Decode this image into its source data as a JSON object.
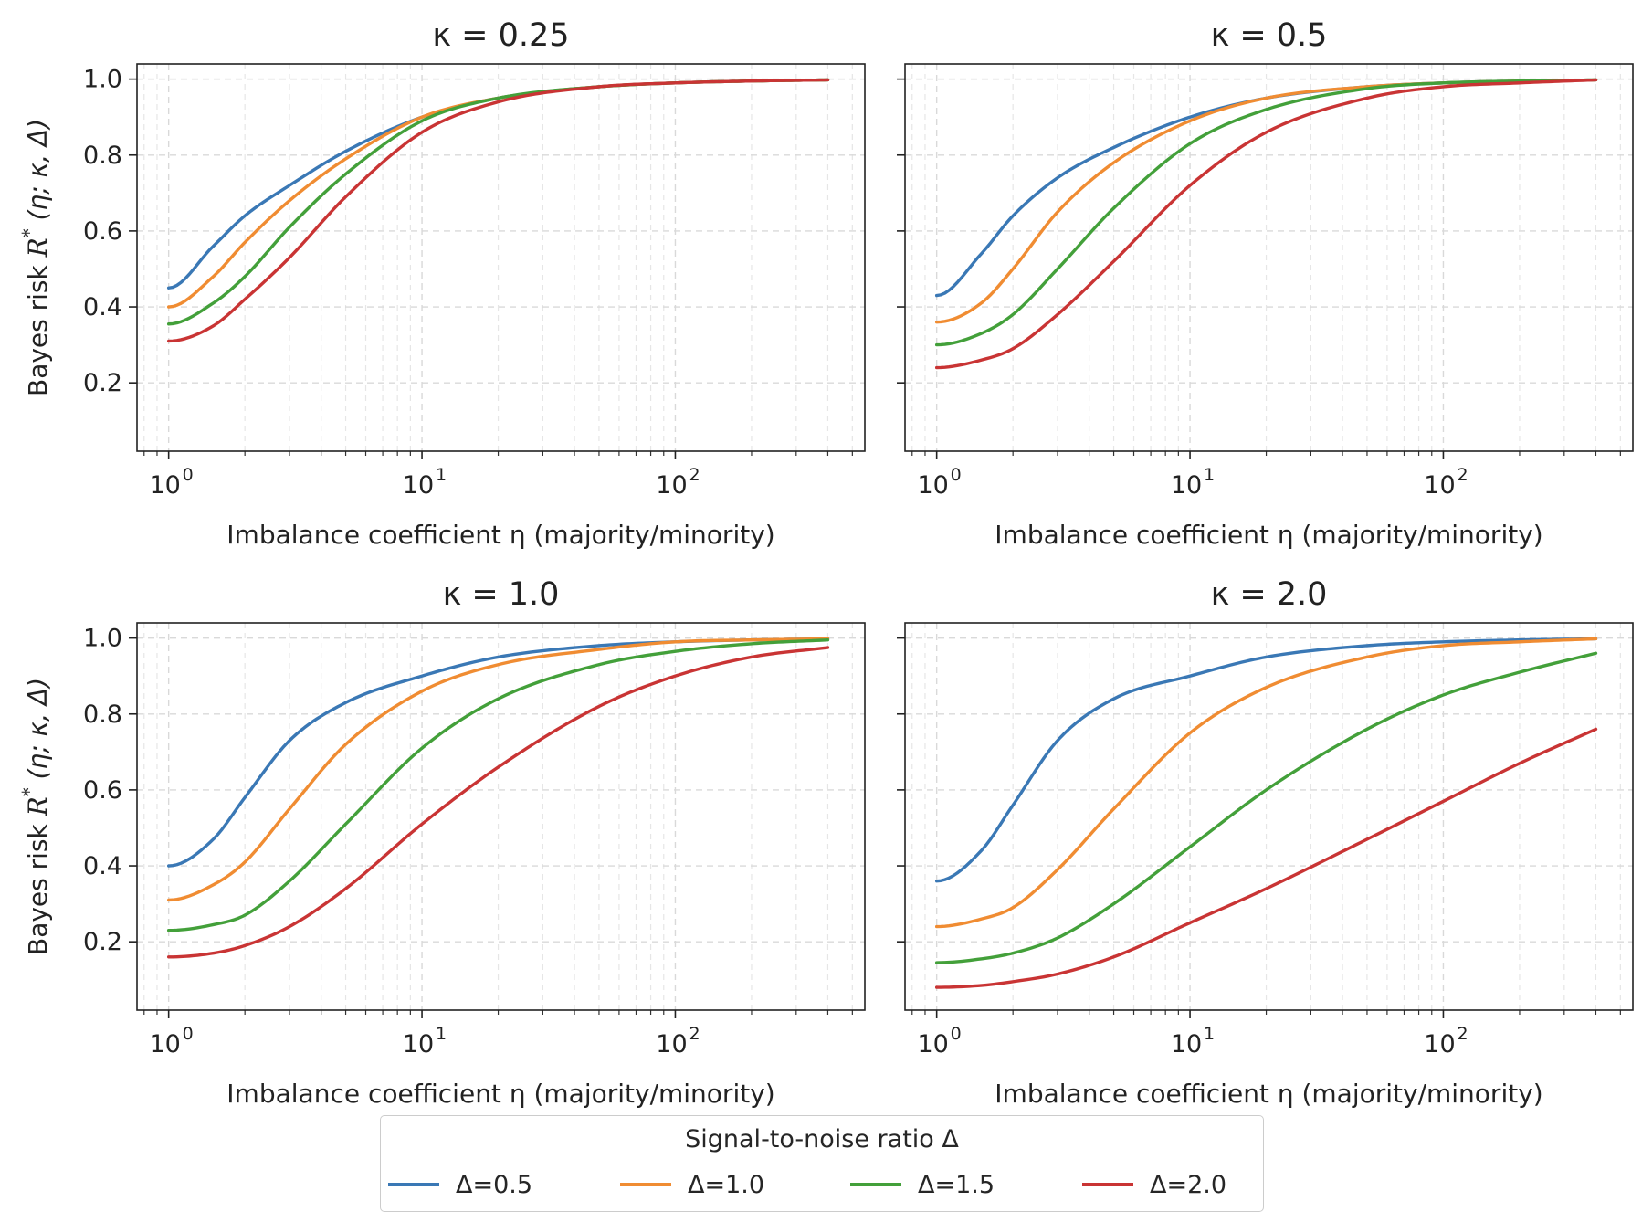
{
  "chart_data": [
    {
      "type": "line",
      "title": "κ = 0.25",
      "xlabel": "Imbalance coefficient η (majority/minority)",
      "ylabel": "Bayes risk",
      "x_scale": "log",
      "xlim": [
        0.75,
        560
      ],
      "ylim": [
        0.02,
        1.04
      ],
      "x_ticks": [
        1,
        10,
        100
      ],
      "x_tick_labels": [
        "10",
        "10",
        "10"
      ],
      "x_tick_exponents": [
        "0",
        "1",
        "2"
      ],
      "y_ticks": [
        0.2,
        0.4,
        0.6,
        0.8,
        1.0
      ],
      "y_tick_labels": [
        "0.2",
        "0.4",
        "0.6",
        "0.8",
        "1.0"
      ],
      "grid": true,
      "x": [
        1,
        1.5,
        2,
        3,
        5,
        10,
        20,
        50,
        100,
        200,
        400
      ],
      "series": [
        {
          "name": "Δ=0.5",
          "values": [
            0.45,
            0.56,
            0.64,
            0.72,
            0.81,
            0.9,
            0.95,
            0.98,
            0.99,
            0.995,
            0.998
          ]
        },
        {
          "name": "Δ=1.0",
          "values": [
            0.4,
            0.48,
            0.57,
            0.68,
            0.79,
            0.9,
            0.95,
            0.98,
            0.99,
            0.995,
            0.998
          ]
        },
        {
          "name": "Δ=1.5",
          "values": [
            0.355,
            0.41,
            0.48,
            0.61,
            0.75,
            0.89,
            0.95,
            0.98,
            0.99,
            0.995,
            0.998
          ]
        },
        {
          "name": "Δ=2.0",
          "values": [
            0.31,
            0.35,
            0.42,
            0.53,
            0.69,
            0.86,
            0.94,
            0.98,
            0.99,
            0.995,
            0.998
          ]
        }
      ]
    },
    {
      "type": "line",
      "title": "κ = 0.5",
      "xlabel": "Imbalance coefficient η (majority/minority)",
      "ylabel": "",
      "x_scale": "log",
      "xlim": [
        0.75,
        560
      ],
      "ylim": [
        0.02,
        1.04
      ],
      "x_ticks": [
        1,
        10,
        100
      ],
      "x_tick_labels": [
        "10",
        "10",
        "10"
      ],
      "x_tick_exponents": [
        "0",
        "1",
        "2"
      ],
      "y_ticks": [
        0.2,
        0.4,
        0.6,
        0.8,
        1.0
      ],
      "y_tick_labels": [
        "",
        "",
        "",
        "",
        ""
      ],
      "grid": true,
      "x": [
        1,
        1.5,
        2,
        3,
        5,
        10,
        20,
        50,
        100,
        200,
        400
      ],
      "series": [
        {
          "name": "Δ=0.5",
          "values": [
            0.43,
            0.54,
            0.64,
            0.74,
            0.82,
            0.9,
            0.95,
            0.98,
            0.99,
            0.995,
            0.998
          ]
        },
        {
          "name": "Δ=1.0",
          "values": [
            0.36,
            0.41,
            0.5,
            0.65,
            0.78,
            0.89,
            0.95,
            0.98,
            0.99,
            0.995,
            0.998
          ]
        },
        {
          "name": "Δ=1.5",
          "values": [
            0.3,
            0.33,
            0.38,
            0.5,
            0.66,
            0.83,
            0.92,
            0.975,
            0.99,
            0.995,
            0.998
          ]
        },
        {
          "name": "Δ=2.0",
          "values": [
            0.24,
            0.26,
            0.29,
            0.38,
            0.52,
            0.72,
            0.86,
            0.95,
            0.98,
            0.99,
            0.998
          ]
        }
      ]
    },
    {
      "type": "line",
      "title": "κ = 1.0",
      "xlabel": "Imbalance coefficient η (majority/minority)",
      "ylabel": "Bayes risk",
      "x_scale": "log",
      "xlim": [
        0.75,
        560
      ],
      "ylim": [
        0.02,
        1.04
      ],
      "x_ticks": [
        1,
        10,
        100
      ],
      "x_tick_labels": [
        "10",
        "10",
        "10"
      ],
      "x_tick_exponents": [
        "0",
        "1",
        "2"
      ],
      "y_ticks": [
        0.2,
        0.4,
        0.6,
        0.8,
        1.0
      ],
      "y_tick_labels": [
        "0.2",
        "0.4",
        "0.6",
        "0.8",
        "1.0"
      ],
      "grid": true,
      "x": [
        1,
        1.5,
        2,
        3,
        5,
        10,
        20,
        50,
        100,
        200,
        400
      ],
      "series": [
        {
          "name": "Δ=0.5",
          "values": [
            0.4,
            0.47,
            0.58,
            0.73,
            0.83,
            0.9,
            0.95,
            0.98,
            0.99,
            0.995,
            0.998
          ]
        },
        {
          "name": "Δ=1.0",
          "values": [
            0.31,
            0.35,
            0.41,
            0.55,
            0.72,
            0.86,
            0.93,
            0.97,
            0.99,
            0.995,
            0.998
          ]
        },
        {
          "name": "Δ=1.5",
          "values": [
            0.23,
            0.245,
            0.27,
            0.36,
            0.51,
            0.71,
            0.84,
            0.93,
            0.965,
            0.985,
            0.995
          ]
        },
        {
          "name": "Δ=2.0",
          "values": [
            0.16,
            0.17,
            0.19,
            0.24,
            0.34,
            0.51,
            0.66,
            0.82,
            0.9,
            0.95,
            0.975
          ]
        }
      ]
    },
    {
      "type": "line",
      "title": "κ = 2.0",
      "xlabel": "Imbalance coefficient η (majority/minority)",
      "ylabel": "",
      "x_scale": "log",
      "xlim": [
        0.75,
        560
      ],
      "ylim": [
        0.02,
        1.04
      ],
      "x_ticks": [
        1,
        10,
        100
      ],
      "x_tick_labels": [
        "10",
        "10",
        "10"
      ],
      "x_tick_exponents": [
        "0",
        "1",
        "2"
      ],
      "y_ticks": [
        0.2,
        0.4,
        0.6,
        0.8,
        1.0
      ],
      "y_tick_labels": [
        "",
        "",
        "",
        "",
        ""
      ],
      "grid": true,
      "x": [
        1,
        1.5,
        2,
        3,
        5,
        10,
        20,
        50,
        100,
        200,
        400
      ],
      "series": [
        {
          "name": "Δ=0.5",
          "values": [
            0.36,
            0.44,
            0.56,
            0.73,
            0.84,
            0.9,
            0.95,
            0.98,
            0.99,
            0.995,
            0.998
          ]
        },
        {
          "name": "Δ=1.0",
          "values": [
            0.24,
            0.26,
            0.29,
            0.39,
            0.55,
            0.75,
            0.87,
            0.95,
            0.98,
            0.99,
            0.998
          ]
        },
        {
          "name": "Δ=1.5",
          "values": [
            0.145,
            0.155,
            0.17,
            0.21,
            0.3,
            0.45,
            0.6,
            0.76,
            0.85,
            0.91,
            0.96
          ]
        },
        {
          "name": "Δ=2.0",
          "values": [
            0.08,
            0.085,
            0.095,
            0.115,
            0.16,
            0.25,
            0.34,
            0.47,
            0.57,
            0.67,
            0.76
          ]
        }
      ]
    }
  ],
  "ylabel_math": {
    "r": "R",
    "star": "*",
    "args": "(η; κ, Δ)"
  },
  "legend": {
    "title": "Signal-to-noise ratio Δ",
    "placement": "bottom-center",
    "items": [
      {
        "label": "Δ=0.5",
        "color": "#3a78b5"
      },
      {
        "label": "Δ=1.0",
        "color": "#f08c32"
      },
      {
        "label": "Δ=1.5",
        "color": "#43a03a"
      },
      {
        "label": "Δ=2.0",
        "color": "#c93434"
      }
    ]
  },
  "colors": [
    "#3a78b5",
    "#f08c32",
    "#43a03a",
    "#c93434"
  ]
}
